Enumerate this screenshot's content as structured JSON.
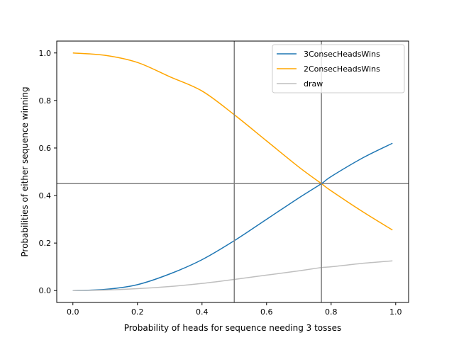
{
  "chart_data": {
    "type": "line",
    "xlabel": "Probability of heads for sequence needing 3 tosses",
    "ylabel": "Probabilities of either sequence winning",
    "xlim": [
      -0.05,
      1.04
    ],
    "ylim": [
      -0.05,
      1.05
    ],
    "x_ticks": [
      0.0,
      0.2,
      0.4,
      0.6,
      0.8,
      1.0
    ],
    "x_tick_labels": [
      "0.0",
      "0.2",
      "0.4",
      "0.6",
      "0.8",
      "1.0"
    ],
    "y_ticks": [
      0.0,
      0.2,
      0.4,
      0.6,
      0.8,
      1.0
    ],
    "y_tick_labels": [
      "0.0",
      "0.2",
      "0.4",
      "0.6",
      "0.8",
      "1.0"
    ],
    "grid": false,
    "legend_position": "upper right",
    "x": [
      0.0,
      0.1,
      0.2,
      0.3,
      0.4,
      0.5,
      0.6,
      0.7,
      0.77,
      0.8,
      0.9,
      0.99
    ],
    "series": [
      {
        "name": "3ConsecHeadsWins",
        "color": "#1f77b4",
        "values": [
          0.0,
          0.005,
          0.025,
          0.07,
          0.13,
          0.21,
          0.3,
          0.39,
          0.45,
          0.48,
          0.56,
          0.62
        ]
      },
      {
        "name": "2ConsecHeadsWins",
        "color": "#ffa500",
        "values": [
          1.0,
          0.99,
          0.96,
          0.9,
          0.84,
          0.74,
          0.63,
          0.52,
          0.45,
          0.42,
          0.33,
          0.255
        ]
      },
      {
        "name": "draw",
        "color": "#bfbfbf",
        "values": [
          0.0,
          0.002,
          0.008,
          0.017,
          0.03,
          0.047,
          0.065,
          0.083,
          0.097,
          0.1,
          0.115,
          0.125
        ]
      }
    ],
    "reference_lines": {
      "color": "#808080",
      "vertical_x": [
        0.5,
        0.77
      ],
      "horizontal_y": [
        0.45
      ]
    }
  }
}
